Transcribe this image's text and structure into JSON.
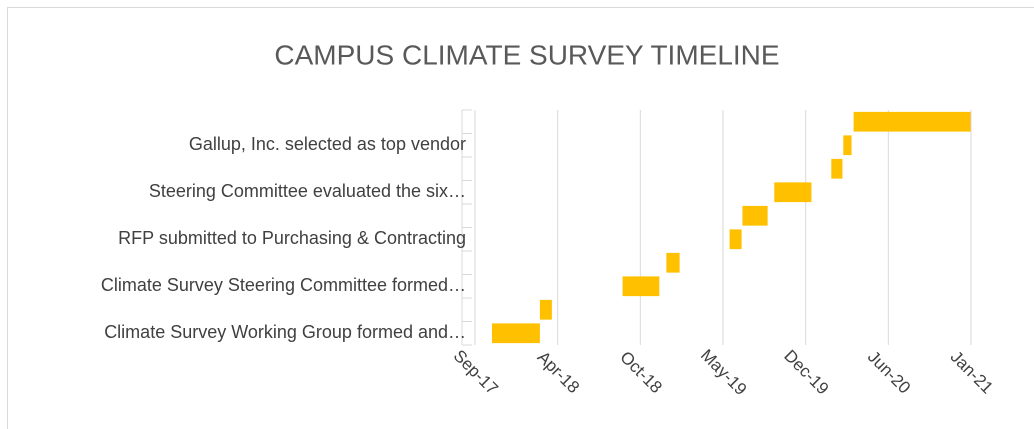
{
  "chart_data": {
    "type": "gantt",
    "title": "CAMPUS CLIMATE SURVEY TIMELINE",
    "categories": [
      "Climate Survey Working Group formed and…",
      null,
      "Climate Survey Steering Committee formed…",
      null,
      "RFP submitted to Purchasing & Contracting",
      null,
      "Steering Committee evaluated the six…",
      null,
      "Gallup, Inc. selected as top vendor",
      null
    ],
    "start": [
      "2017-11-05",
      "2018-03-01",
      "2018-09-17",
      "2019-01-01",
      "2019-06-03",
      "2019-07-04",
      "2019-09-19",
      "2020-02-04",
      "2020-03-04",
      "2020-03-29"
    ],
    "end": [
      "2018-03-01",
      "2018-03-30",
      "2018-12-15",
      "2019-02-02",
      "2019-07-02",
      "2019-09-03",
      "2019-12-18",
      "2020-03-02",
      "2020-03-24",
      "2021-01-06"
    ],
    "color": "#ffc000",
    "xlim": [
      "2017-09-25",
      "2021-01-07"
    ],
    "xticks": [
      {
        "value": "2017-09-25",
        "label": "Sep-17"
      },
      {
        "value": "2018-04-13",
        "label": "Apr-18"
      },
      {
        "value": "2018-10-30",
        "label": "Oct-18"
      },
      {
        "value": "2019-05-18",
        "label": "May-19"
      },
      {
        "value": "2019-12-04",
        "label": "Dec-19"
      },
      {
        "value": "2020-06-21",
        "label": "Jun-20"
      },
      {
        "value": "2021-01-07",
        "label": "Jan-21"
      }
    ],
    "grid": true
  }
}
